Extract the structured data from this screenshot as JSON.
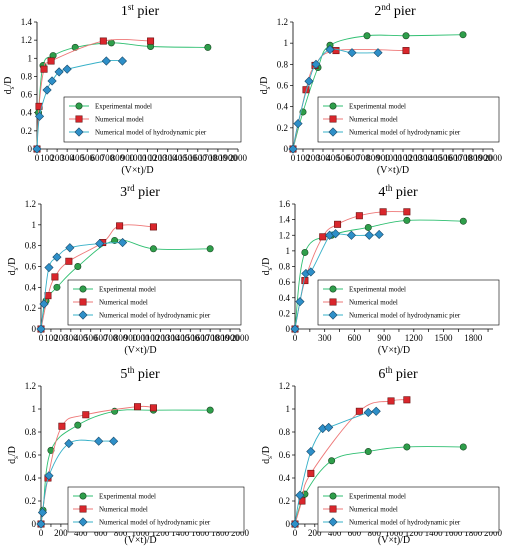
{
  "figure": {
    "series_styles": [
      {
        "name": "Experimental model",
        "marker": "circle",
        "fill": "#2e9e4a",
        "line": "#2fbf71"
      },
      {
        "name": "Numerical model",
        "marker": "square",
        "fill": "#d9262c",
        "line": "#ee7777"
      },
      {
        "name": "Numerical model of hydrodynamic pier",
        "marker": "diamond",
        "fill": "#2e8fc8",
        "line": "#36b0c8"
      }
    ],
    "axis_color": "#000000"
  },
  "chart_data": [
    {
      "type": "line",
      "title": "1st pier",
      "title_main": "1",
      "title_sup": "st",
      "title_rest": " pier",
      "xlabel": "(V×t)/D",
      "ylabel": "ds/D",
      "ylabel_main": "d",
      "ylabel_sub": "s",
      "ylabel_rest": "/D",
      "xlim": [
        0,
        2000
      ],
      "xticks": [
        0,
        100,
        200,
        300,
        400,
        500,
        600,
        700,
        800,
        900,
        1000,
        1100,
        1200,
        1300,
        1400,
        1500,
        1600,
        1700,
        1800,
        1900,
        2000
      ],
      "xtick_labels": [
        "0",
        "100",
        "200",
        "300",
        "400",
        "500",
        "600",
        "700",
        "800",
        "900",
        "1000",
        "1100",
        "1200",
        "1300",
        "1400",
        "1500",
        "1600",
        "1700",
        "1800",
        "1900",
        "2000"
      ],
      "ylim": [
        0,
        1.4
      ],
      "yticks": [
        0,
        0.2,
        0.4,
        0.6,
        0.8,
        1,
        1.2,
        1.4
      ],
      "ytick_labels": [
        "0",
        "0.2",
        "0.4",
        "0.6",
        "0.8",
        "1",
        "1.2",
        "1.4"
      ],
      "legend": "bottom-right",
      "series": [
        {
          "name": "Experimental model",
          "x": [
            0,
            15,
            60,
            160,
            380,
            740,
            1130,
            1700
          ],
          "y": [
            0,
            0.4,
            0.92,
            1.03,
            1.12,
            1.17,
            1.13,
            1.12
          ]
        },
        {
          "name": "Numerical model",
          "x": [
            0,
            20,
            70,
            140,
            660,
            1130
          ],
          "y": [
            0,
            0.47,
            0.88,
            0.97,
            1.19,
            1.19
          ]
        },
        {
          "name": "Numerical model of hydrodynamic pier",
          "x": [
            0,
            25,
            100,
            150,
            220,
            300,
            690,
            850
          ],
          "y": [
            0,
            0.36,
            0.65,
            0.75,
            0.85,
            0.88,
            0.97,
            0.97
          ]
        }
      ]
    },
    {
      "type": "line",
      "title": "2nd pier",
      "title_main": "2",
      "title_sup": "nd",
      "title_rest": " pier",
      "xlabel": "(V×t)/D",
      "ylabel": "ds/D",
      "ylabel_main": "d",
      "ylabel_sub": "s",
      "ylabel_rest": "/D",
      "xlim": [
        0,
        2000
      ],
      "xticks": [
        0,
        100,
        200,
        300,
        400,
        500,
        600,
        700,
        800,
        900,
        1000,
        1100,
        1200,
        1300,
        1400,
        1500,
        1600,
        1700,
        1800,
        1900,
        2000
      ],
      "xtick_labels": [
        "0",
        "100",
        "200",
        "300",
        "400",
        "500",
        "600",
        "700",
        "800",
        "900",
        "1000",
        "1100",
        "1200",
        "1300",
        "1400",
        "1500",
        "1600",
        "1700",
        "1800",
        "1900",
        "2000"
      ],
      "ylim": [
        0,
        1.2
      ],
      "yticks": [
        0,
        0.2,
        0.4,
        0.6,
        0.8,
        1,
        1.2
      ],
      "ytick_labels": [
        "0",
        "0.2",
        "0.4",
        "0.6",
        "0.8",
        "1",
        "1.2"
      ],
      "legend": "bottom-right",
      "series": [
        {
          "name": "Experimental model",
          "x": [
            0,
            100,
            250,
            370,
            740,
            1130,
            1700
          ],
          "y": [
            0,
            0.35,
            0.77,
            0.98,
            1.07,
            1.07,
            1.08
          ]
        },
        {
          "name": "Numerical model",
          "x": [
            0,
            130,
            220,
            430,
            1130
          ],
          "y": [
            0,
            0.56,
            0.79,
            0.93,
            0.93
          ]
        },
        {
          "name": "Numerical model of hydrodynamic pier",
          "x": [
            0,
            50,
            160,
            230,
            370,
            590,
            850
          ],
          "y": [
            0,
            0.24,
            0.64,
            0.8,
            0.94,
            0.91,
            0.91
          ]
        }
      ]
    },
    {
      "type": "line",
      "title": "3rd pier",
      "title_main": "3",
      "title_sup": "rd",
      "title_rest": " pier",
      "xlabel": "(V×t)/D",
      "ylabel": "ds/D",
      "ylabel_main": "d",
      "ylabel_sub": "s",
      "ylabel_rest": "/D",
      "xlim": [
        0,
        2000
      ],
      "xticks": [
        0,
        100,
        200,
        300,
        400,
        500,
        600,
        700,
        800,
        900,
        1000,
        1100,
        1200,
        1300,
        1400,
        1500,
        1600,
        1700,
        1800,
        1900,
        2000
      ],
      "xtick_labels": [
        "0",
        "100",
        "200",
        "300",
        "400",
        "500",
        "600",
        "700",
        "800",
        "900",
        "1000",
        "1100",
        "1200",
        "1300",
        "1400",
        "1500",
        "1600",
        "1700",
        "1800",
        "1900",
        "2000"
      ],
      "ylim": [
        0,
        1.2
      ],
      "yticks": [
        0,
        0.2,
        0.4,
        0.6,
        0.8,
        1,
        1.2
      ],
      "ytick_labels": [
        "0",
        "0.2",
        "0.4",
        "0.6",
        "0.8",
        "1",
        "1.2"
      ],
      "legend": "bottom-right",
      "series": [
        {
          "name": "Experimental model",
          "x": [
            0,
            50,
            160,
            370,
            740,
            1130,
            1700
          ],
          "y": [
            0,
            0.27,
            0.4,
            0.6,
            0.85,
            0.77,
            0.77
          ]
        },
        {
          "name": "Numerical model",
          "x": [
            0,
            70,
            140,
            280,
            620,
            790,
            1130
          ],
          "y": [
            0,
            0.32,
            0.5,
            0.65,
            0.83,
            0.99,
            0.98
          ]
        },
        {
          "name": "Numerical model of hydrodynamic pier",
          "x": [
            0,
            30,
            80,
            160,
            290,
            590,
            820
          ],
          "y": [
            0,
            0.24,
            0.59,
            0.69,
            0.78,
            0.82,
            0.83
          ]
        }
      ]
    },
    {
      "type": "line",
      "title": "4th pier",
      "title_main": "4",
      "title_sup": "th",
      "title_rest": " pier",
      "xlabel": "(V×t)/D",
      "ylabel": "ds/D",
      "ylabel_main": "d",
      "ylabel_sub": "s",
      "ylabel_rest": "/D",
      "xlim": [
        0,
        2000
      ],
      "xticks": [
        0,
        150,
        300,
        450,
        600,
        750,
        900,
        1050,
        1200,
        1350,
        1500,
        1650,
        1800,
        1950
      ],
      "xtick_labels": [
        "0",
        "",
        "300",
        "",
        "600",
        "",
        "900",
        "",
        "1200",
        "",
        "1500",
        "",
        "1800",
        ""
      ],
      "ylim": [
        0,
        1.6
      ],
      "yticks": [
        0,
        0.2,
        0.4,
        0.6,
        0.8,
        1,
        1.2,
        1.4,
        1.6
      ],
      "ytick_labels": [
        "0",
        "0.2",
        "0.4",
        "0.6",
        "0.8",
        "1",
        "1.2",
        "1.4",
        "1.6"
      ],
      "legend": "bottom-right",
      "series": [
        {
          "name": "Experimental model",
          "x": [
            0,
            100,
            370,
            740,
            1130,
            1700
          ],
          "y": [
            0,
            0.98,
            1.2,
            1.3,
            1.39,
            1.38
          ]
        },
        {
          "name": "Numerical model",
          "x": [
            0,
            100,
            280,
            430,
            650,
            890,
            1130
          ],
          "y": [
            0,
            0.62,
            1.18,
            1.34,
            1.45,
            1.5,
            1.5
          ]
        },
        {
          "name": "Numerical model of hydrodynamic pier",
          "x": [
            0,
            50,
            110,
            160,
            350,
            410,
            570,
            750,
            850
          ],
          "y": [
            0,
            0.35,
            0.71,
            0.73,
            1.2,
            1.22,
            1.2,
            1.2,
            1.21
          ]
        }
      ]
    },
    {
      "type": "line",
      "title": "5th pier",
      "title_main": "5",
      "title_sup": "th",
      "title_rest": " pier",
      "xlabel": "(V×t)/D",
      "ylabel": "ds/D",
      "ylabel_main": "d",
      "ylabel_sub": "s",
      "ylabel_rest": "/D",
      "xlim": [
        0,
        2000
      ],
      "xticks": [
        0,
        100,
        200,
        300,
        400,
        500,
        600,
        700,
        800,
        900,
        1000,
        1100,
        1200,
        1300,
        1400,
        1500,
        1600,
        1700,
        1800,
        1900,
        2000
      ],
      "xtick_labels": [
        "0",
        "",
        "200",
        "",
        "400",
        "",
        "600",
        "",
        "800",
        "",
        "1000",
        "",
        "1200",
        "",
        "1400",
        "",
        "1600",
        "",
        "1800",
        "",
        "2000"
      ],
      "ylim": [
        0,
        1.2
      ],
      "yticks": [
        0,
        0.2,
        0.4,
        0.6,
        0.8,
        1,
        1.2
      ],
      "ytick_labels": [
        "0",
        "0.2",
        "0.4",
        "0.6",
        "0.8",
        "1",
        "1.2"
      ],
      "legend": "bottom-right",
      "series": [
        {
          "name": "Experimental model",
          "x": [
            0,
            20,
            100,
            370,
            740,
            1130,
            1700
          ],
          "y": [
            0,
            0.12,
            0.64,
            0.86,
            0.98,
            0.99,
            0.99
          ]
        },
        {
          "name": "Numerical model",
          "x": [
            0,
            70,
            210,
            450,
            970,
            1130
          ],
          "y": [
            0,
            0.4,
            0.85,
            0.95,
            1.02,
            1.01
          ]
        },
        {
          "name": "Numerical model of hydrodynamic pier",
          "x": [
            0,
            15,
            80,
            280,
            580,
            730
          ],
          "y": [
            0,
            0.1,
            0.42,
            0.7,
            0.72,
            0.72
          ]
        }
      ]
    },
    {
      "type": "line",
      "title": "6th pier",
      "title_main": "6",
      "title_sup": "th",
      "title_rest": " pier",
      "xlabel": "(V×t)/D",
      "ylabel": "ds/D",
      "ylabel_main": "d",
      "ylabel_sub": "s",
      "ylabel_rest": "/D",
      "xlim": [
        0,
        2000
      ],
      "xticks": [
        0,
        100,
        200,
        300,
        400,
        500,
        600,
        700,
        800,
        900,
        1000,
        1100,
        1200,
        1300,
        1400,
        1500,
        1600,
        1700,
        1800,
        1900,
        2000
      ],
      "xtick_labels": [
        "0",
        "",
        "200",
        "",
        "400",
        "",
        "600",
        "",
        "800",
        "",
        "1000",
        "",
        "1200",
        "",
        "1400",
        "",
        "1600",
        "",
        "1800",
        "",
        "2000"
      ],
      "ylim": [
        0,
        1.2
      ],
      "yticks": [
        0,
        0.2,
        0.4,
        0.6,
        0.8,
        1,
        1.2
      ],
      "ytick_labels": [
        "0",
        "0.2",
        "0.4",
        "0.6",
        "0.8",
        "1",
        "1.2"
      ],
      "legend": "bottom-right",
      "series": [
        {
          "name": "Experimental model",
          "x": [
            0,
            100,
            370,
            740,
            1130,
            1700
          ],
          "y": [
            0,
            0.26,
            0.55,
            0.63,
            0.67,
            0.67
          ]
        },
        {
          "name": "Numerical model",
          "x": [
            0,
            70,
            160,
            650,
            970,
            1130
          ],
          "y": [
            0,
            0.2,
            0.44,
            0.98,
            1.07,
            1.08
          ]
        },
        {
          "name": "Numerical model of hydrodynamic pier",
          "x": [
            0,
            50,
            160,
            280,
            340,
            740,
            820
          ],
          "y": [
            0,
            0.25,
            0.63,
            0.83,
            0.84,
            0.97,
            0.98
          ]
        }
      ]
    }
  ]
}
